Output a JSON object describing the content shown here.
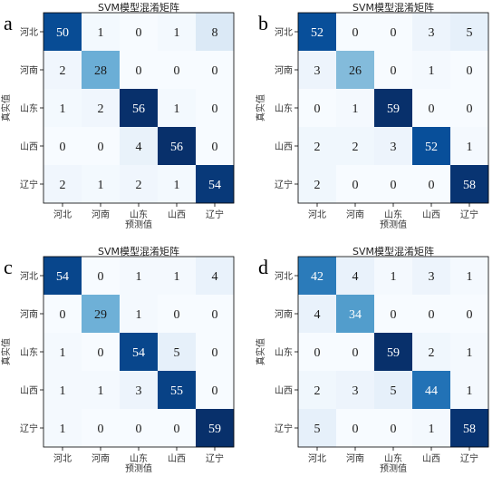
{
  "chart_data": [
    {
      "type": "heatmap",
      "panel_label": "a",
      "title": "SVM模型混淆矩阵",
      "xlabel": "预测值",
      "ylabel": "真实值",
      "categories": [
        "河北",
        "河南",
        "山东",
        "山西",
        "辽宁"
      ],
      "matrix": [
        [
          50,
          1,
          0,
          1,
          8
        ],
        [
          2,
          28,
          0,
          0,
          0
        ],
        [
          1,
          2,
          56,
          1,
          0
        ],
        [
          0,
          0,
          4,
          56,
          0
        ],
        [
          2,
          1,
          2,
          1,
          54
        ]
      ],
      "colormap": "Blues"
    },
    {
      "type": "heatmap",
      "panel_label": "b",
      "title": "SVM模型混淆矩阵",
      "xlabel": "预测值",
      "ylabel": "真实值",
      "categories": [
        "河北",
        "河南",
        "山东",
        "山西",
        "辽宁"
      ],
      "matrix": [
        [
          52,
          0,
          0,
          3,
          5
        ],
        [
          3,
          26,
          0,
          1,
          0
        ],
        [
          0,
          1,
          59,
          0,
          0
        ],
        [
          2,
          2,
          3,
          52,
          1
        ],
        [
          2,
          0,
          0,
          0,
          58
        ]
      ],
      "colormap": "Blues"
    },
    {
      "type": "heatmap",
      "panel_label": "c",
      "title": "SVM模型混淆矩阵",
      "xlabel": "预测值",
      "ylabel": "真实值",
      "categories": [
        "河北",
        "河南",
        "山东",
        "山西",
        "辽宁"
      ],
      "matrix": [
        [
          54,
          0,
          1,
          1,
          4
        ],
        [
          0,
          29,
          1,
          0,
          0
        ],
        [
          1,
          0,
          54,
          5,
          0
        ],
        [
          1,
          1,
          3,
          55,
          0
        ],
        [
          1,
          0,
          0,
          0,
          59
        ]
      ],
      "colormap": "Blues"
    },
    {
      "type": "heatmap",
      "panel_label": "d",
      "title": "SVM模型混淆矩阵",
      "xlabel": "预测值",
      "ylabel": "真实值",
      "categories": [
        "河北",
        "河南",
        "山东",
        "山西",
        "辽宁"
      ],
      "matrix": [
        [
          42,
          4,
          1,
          3,
          1
        ],
        [
          4,
          34,
          0,
          0,
          0
        ],
        [
          0,
          0,
          59,
          2,
          1
        ],
        [
          2,
          3,
          5,
          44,
          1
        ],
        [
          5,
          0,
          0,
          1,
          58
        ]
      ],
      "colormap": "Blues"
    }
  ]
}
